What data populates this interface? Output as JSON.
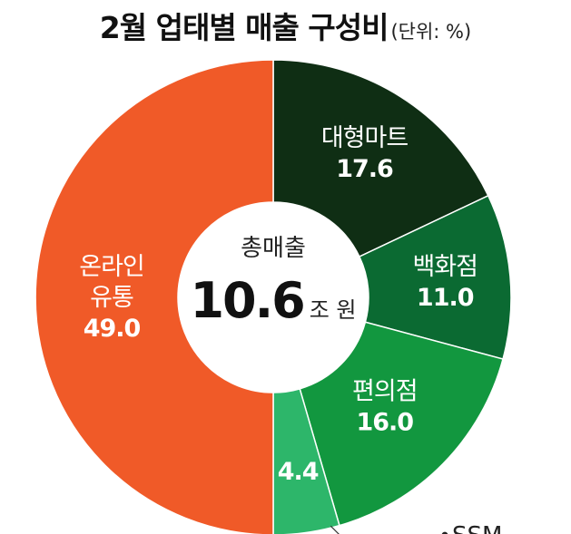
{
  "header": {
    "title": "2월 업태별 매출 구성비",
    "unit": "(단위: %)"
  },
  "chart_data": {
    "type": "pie",
    "categories": [
      "대형마트",
      "백화점",
      "편의점",
      "SSM",
      "온라인 유통"
    ],
    "values": [
      17.6,
      11.0,
      16.0,
      4.4,
      49.0
    ],
    "value_labels": [
      "17.6",
      "11.0",
      "16.0",
      "4.4",
      "49.0"
    ],
    "colors": [
      "#0f2e14",
      "#0b6a32",
      "#12973f",
      "#2db66a",
      "#f05a28"
    ],
    "center_label": "총매출",
    "center_value": "10.6",
    "center_unit": "조 원"
  }
}
